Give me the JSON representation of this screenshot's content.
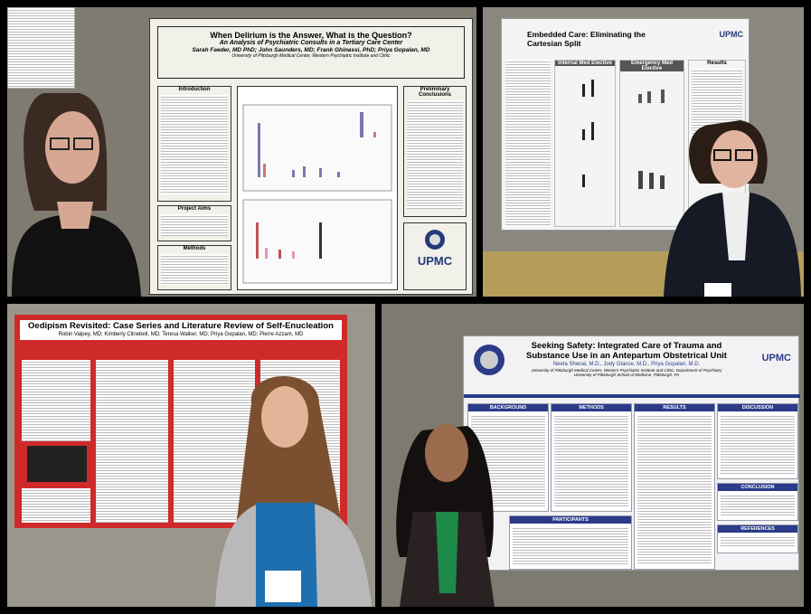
{
  "panels": [
    {
      "title": "When Delirium is the Answer, What is the Question?",
      "subtitle": "An Analysis of Psychiatric Consults in a Tertiary Care Center",
      "authors": "Sarah Faeder, MD PhD; John Saunders, MD; Frank Ghinassi, PhD; Priya Gopalan, MD",
      "affiliation": "University of Pittsburgh Medical Center, Western Psychiatric Institute and Clinic",
      "sections": [
        "Introduction",
        "Project Aims",
        "Methods",
        "Preliminary Conclusions"
      ],
      "logo": "UPMC"
    },
    {
      "title": "Embedded Care: Eliminating the Cartesian Split",
      "logo": "UPMC",
      "sections": [
        "Internal Med Elective",
        "Emergency Med Elective",
        "Results"
      ]
    },
    {
      "title": "Oedipism Revisited: Case Series and Literature Review of Self-Enucleation",
      "authors": "Robin Valpey, MD; Kimberly Clinebell, MD; Teresa Walker, MD; Priya Gopalan, MD; Pierre Azzam, MD"
    },
    {
      "title": "Seeking Safety: Integrated Care of Trauma and Substance Use in an Antepartum Obstetrical Unit",
      "authors": "Neeta Shenai, M.D., Jody Glance, M.D., Priya Gopalan, M.D.",
      "affiliation": "University of Pittsburgh Medical Center, Western Psychiatric Institute and Clinic, Department of Psychiatry",
      "affiliation2": "University of Pittsburgh School of Medicine, Pittsburgh, PA",
      "logo": "UPMC",
      "sections": [
        "BACKGROUND",
        "METHODS",
        "RESULTS",
        "DISCUSSION",
        "CONCLUSION",
        "PARTICIPANTS",
        "REFERENCES"
      ]
    }
  ]
}
